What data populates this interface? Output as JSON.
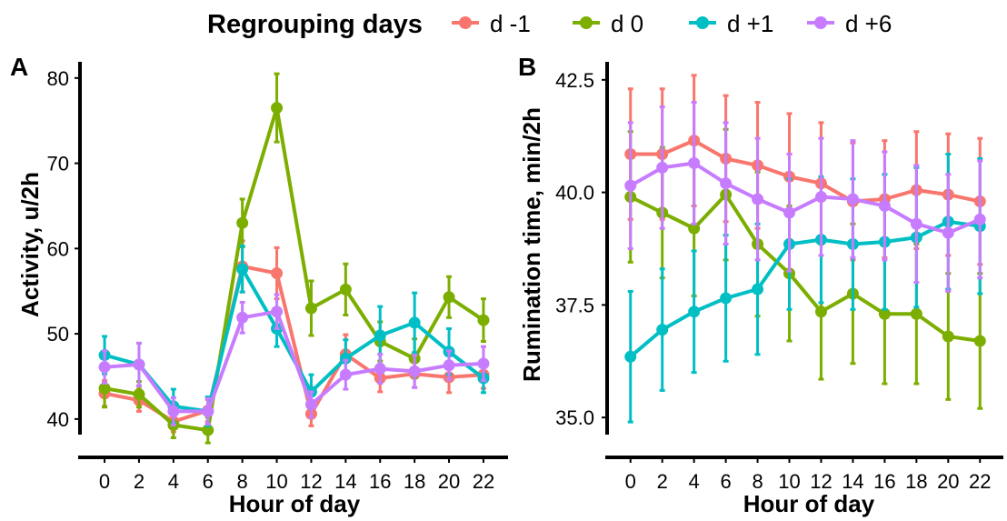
{
  "legend": {
    "title": "Regrouping days",
    "placement": "top-center",
    "entries": [
      {
        "label": "d -1",
        "color": "#F8766D"
      },
      {
        "label": "d 0",
        "color": "#7CAE00"
      },
      {
        "label": "d +1",
        "color": "#00BFC4"
      },
      {
        "label": "d +6",
        "color": "#C77CFF"
      }
    ]
  },
  "chart_data": [
    {
      "type": "line",
      "panel_label": "A",
      "xlabel": "Hour of day",
      "ylabel": "Activity, u/2h",
      "x": [
        0,
        2,
        4,
        6,
        8,
        10,
        12,
        14,
        16,
        18,
        20,
        22
      ],
      "xticks": [
        "0",
        "2",
        "4",
        "6",
        "8",
        "10",
        "12",
        "14",
        "16",
        "18",
        "20",
        "22"
      ],
      "yticks": [
        40,
        50,
        60,
        70,
        80
      ],
      "ytick_labels": [
        "40",
        "50",
        "60",
        "70",
        "80"
      ],
      "xlim": [
        -0.9,
        22.9
      ],
      "ylim": [
        38.6,
        81.9
      ],
      "error_bars": true,
      "grid": false,
      "series": [
        {
          "name": "d -1",
          "color": "#F8766D",
          "values": [
            43.0,
            42.2,
            39.7,
            41.0,
            57.9,
            57.1,
            40.6,
            47.6,
            44.8,
            45.3,
            44.9,
            45.2
          ],
          "errors": [
            1.5,
            1.3,
            1.2,
            1.3,
            3.0,
            3.0,
            1.4,
            2.3,
            1.6,
            1.6,
            1.8,
            1.6
          ]
        },
        {
          "name": "d 0",
          "color": "#7CAE00",
          "values": [
            43.6,
            42.9,
            39.3,
            38.7,
            63.0,
            76.5,
            53.0,
            55.2,
            49.1,
            47.1,
            54.3,
            51.6
          ],
          "errors": [
            2.2,
            1.5,
            1.5,
            1.5,
            2.8,
            4.0,
            3.2,
            3.0,
            2.3,
            2.3,
            2.4,
            2.5
          ]
        },
        {
          "name": "d +1",
          "color": "#00BFC4",
          "values": [
            47.5,
            46.4,
            41.5,
            40.9,
            57.6,
            50.6,
            43.2,
            47.1,
            49.8,
            51.3,
            47.9,
            44.8
          ],
          "errors": [
            2.2,
            2.5,
            2.0,
            1.7,
            2.7,
            2.1,
            2.0,
            2.2,
            3.4,
            3.5,
            2.7,
            1.7
          ]
        },
        {
          "name": "d +6",
          "color": "#C77CFF",
          "values": [
            46.1,
            46.4,
            40.9,
            40.9,
            51.9,
            52.6,
            41.7,
            45.2,
            45.9,
            45.6,
            46.3,
            46.5
          ],
          "errors": [
            1.9,
            2.5,
            1.6,
            1.5,
            1.8,
            2.0,
            1.5,
            1.7,
            1.7,
            1.9,
            1.7,
            2.0
          ]
        }
      ]
    },
    {
      "type": "line",
      "panel_label": "B",
      "xlabel": "Hour of day",
      "ylabel": "Rumination time, min/2h",
      "x": [
        0,
        2,
        4,
        6,
        8,
        10,
        12,
        14,
        16,
        18,
        20,
        22
      ],
      "xticks": [
        "0",
        "2",
        "4",
        "6",
        "8",
        "10",
        "12",
        "14",
        "16",
        "18",
        "20",
        "22"
      ],
      "yticks": [
        35.0,
        37.5,
        40.0,
        42.5
      ],
      "ytick_labels": [
        "35.0",
        "37.5",
        "40.0",
        "42.5"
      ],
      "xlim": [
        -0.9,
        22.9
      ],
      "ylim": [
        34.7,
        42.9
      ],
      "error_bars": true,
      "grid": false,
      "series": [
        {
          "name": "d -1",
          "color": "#F8766D",
          "values": [
            40.85,
            40.85,
            41.15,
            40.75,
            40.6,
            40.35,
            40.2,
            39.8,
            39.85,
            40.05,
            39.95,
            39.8
          ],
          "errors": [
            1.45,
            1.45,
            1.45,
            1.4,
            1.4,
            1.4,
            1.35,
            1.3,
            1.3,
            1.3,
            1.35,
            1.4
          ]
        },
        {
          "name": "d 0",
          "color": "#7CAE00",
          "values": [
            39.9,
            39.55,
            39.2,
            39.95,
            38.85,
            38.2,
            37.35,
            37.75,
            37.3,
            37.3,
            36.8,
            36.7
          ],
          "errors": [
            1.45,
            1.45,
            1.5,
            1.45,
            1.6,
            1.5,
            1.5,
            1.55,
            1.55,
            1.55,
            1.4,
            1.5
          ]
        },
        {
          "name": "d +1",
          "color": "#00BFC4",
          "values": [
            36.35,
            36.95,
            37.35,
            37.65,
            37.85,
            38.85,
            38.95,
            38.85,
            38.9,
            39.0,
            39.35,
            39.25
          ],
          "errors": [
            1.45,
            1.35,
            1.35,
            1.4,
            1.45,
            1.45,
            1.4,
            1.45,
            1.5,
            1.55,
            1.5,
            1.5
          ]
        },
        {
          "name": "d +6",
          "color": "#C77CFF",
          "values": [
            40.15,
            40.55,
            40.65,
            40.2,
            39.85,
            39.55,
            39.9,
            39.85,
            39.7,
            39.3,
            39.1,
            39.4
          ],
          "errors": [
            1.4,
            1.35,
            1.35,
            1.35,
            1.35,
            1.3,
            1.3,
            1.3,
            1.2,
            1.3,
            1.3,
            1.3
          ]
        }
      ]
    }
  ]
}
